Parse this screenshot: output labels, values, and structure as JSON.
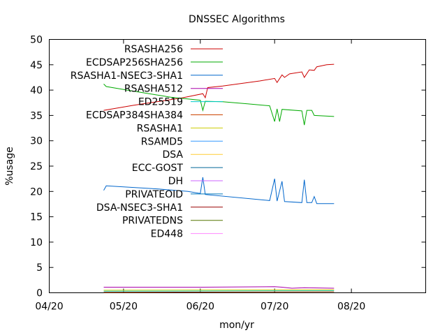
{
  "chart_data": {
    "type": "line",
    "title": "DNSSEC Algorithms",
    "xlabel": "mon/yr",
    "ylabel": "%usage",
    "ylim": [
      0,
      50
    ],
    "yticks": [
      0,
      5,
      10,
      15,
      20,
      25,
      30,
      35,
      40,
      45,
      50
    ],
    "xlim": [
      "2020-04-01",
      "2020-08-31"
    ],
    "xticks": [
      {
        "date": "2020-04-01",
        "label": "04/20"
      },
      {
        "date": "2020-05-01",
        "label": "05/20"
      },
      {
        "date": "2020-06-01",
        "label": "06/20"
      },
      {
        "date": "2020-07-01",
        "label": "07/20"
      },
      {
        "date": "2020-08-01",
        "label": "08/20"
      }
    ],
    "grid": false,
    "legend_position": "top-left inside plot",
    "series": [
      {
        "name": "RSASHA256",
        "color": "#cc0000",
        "points": [
          [
            "2020-04-23",
            36.0
          ],
          [
            "2020-05-05",
            37.0
          ],
          [
            "2020-05-25",
            38.5
          ],
          [
            "2020-06-02",
            39.3
          ],
          [
            "2020-06-03",
            38.5
          ],
          [
            "2020-06-04",
            40.5
          ],
          [
            "2020-06-10",
            40.8
          ],
          [
            "2020-06-25",
            41.8
          ],
          [
            "2020-07-01",
            42.3
          ],
          [
            "2020-07-02",
            41.5
          ],
          [
            "2020-07-04",
            43.0
          ],
          [
            "2020-07-05",
            42.5
          ],
          [
            "2020-07-07",
            43.2
          ],
          [
            "2020-07-12",
            43.6
          ],
          [
            "2020-07-13",
            42.5
          ],
          [
            "2020-07-15",
            44.0
          ],
          [
            "2020-07-17",
            43.9
          ],
          [
            "2020-07-18",
            44.6
          ],
          [
            "2020-07-22",
            45.0
          ],
          [
            "2020-07-25",
            45.1
          ]
        ]
      },
      {
        "name": "ECDSAP256SHA256",
        "color": "#00aa00",
        "points": [
          [
            "2020-04-23",
            41.2
          ],
          [
            "2020-04-24",
            40.7
          ],
          [
            "2020-05-05",
            39.8
          ],
          [
            "2020-05-20",
            38.6
          ],
          [
            "2020-06-01",
            38.0
          ],
          [
            "2020-06-02",
            36.0
          ],
          [
            "2020-06-03",
            37.8
          ],
          [
            "2020-06-10",
            37.7
          ],
          [
            "2020-06-20",
            37.3
          ],
          [
            "2020-06-29",
            36.9
          ],
          [
            "2020-07-01",
            33.8
          ],
          [
            "2020-07-02",
            36.3
          ],
          [
            "2020-07-03",
            33.8
          ],
          [
            "2020-07-04",
            36.2
          ],
          [
            "2020-07-12",
            35.9
          ],
          [
            "2020-07-13",
            33.1
          ],
          [
            "2020-07-14",
            36.0
          ],
          [
            "2020-07-16",
            36.0
          ],
          [
            "2020-07-17",
            35.0
          ],
          [
            "2020-07-25",
            34.8
          ]
        ]
      },
      {
        "name": "RSASHA1-NSEC3-SHA1",
        "color": "#0066cc",
        "points": [
          [
            "2020-04-23",
            20.2
          ],
          [
            "2020-04-24",
            21.1
          ],
          [
            "2020-05-15",
            20.5
          ],
          [
            "2020-05-27",
            20.0
          ],
          [
            "2020-06-01",
            19.6
          ],
          [
            "2020-06-02",
            22.8
          ],
          [
            "2020-06-03",
            19.4
          ],
          [
            "2020-06-29",
            18.2
          ],
          [
            "2020-07-01",
            22.5
          ],
          [
            "2020-07-02",
            18.1
          ],
          [
            "2020-07-04",
            22.0
          ],
          [
            "2020-07-05",
            18.0
          ],
          [
            "2020-07-12",
            17.8
          ],
          [
            "2020-07-13",
            22.3
          ],
          [
            "2020-07-14",
            17.8
          ],
          [
            "2020-07-16",
            17.8
          ],
          [
            "2020-07-17",
            19.0
          ],
          [
            "2020-07-18",
            17.6
          ],
          [
            "2020-07-25",
            17.6
          ]
        ]
      },
      {
        "name": "RSASHA512",
        "color": "#aa00aa",
        "points": [
          [
            "2020-04-23",
            1.1
          ],
          [
            "2020-06-02",
            1.1
          ],
          [
            "2020-07-01",
            1.2
          ],
          [
            "2020-07-04",
            1.1
          ],
          [
            "2020-07-08",
            0.9
          ],
          [
            "2020-07-13",
            1.0
          ],
          [
            "2020-07-25",
            0.9
          ]
        ]
      },
      {
        "name": "ED25519",
        "color": "#00cccc",
        "points": [
          [
            "2020-04-23",
            0.3
          ],
          [
            "2020-07-25",
            0.4
          ]
        ]
      },
      {
        "name": "ECDSAP384SHA384",
        "color": "#cc4400",
        "points": [
          [
            "2020-04-23",
            0.1
          ],
          [
            "2020-07-25",
            0.2
          ]
        ]
      },
      {
        "name": "RSASHA1",
        "color": "#cccc00",
        "points": [
          [
            "2020-04-23",
            0.5
          ],
          [
            "2020-07-25",
            0.6
          ]
        ]
      },
      {
        "name": "RSAMD5",
        "color": "#3399ff",
        "points": []
      },
      {
        "name": "DSA",
        "color": "#ffcc33",
        "points": []
      },
      {
        "name": "ECC-GOST",
        "color": "#006699",
        "points": []
      },
      {
        "name": "DH",
        "color": "#cc66ff",
        "points": []
      },
      {
        "name": "PRIVATEOID",
        "color": "#0077bb",
        "points": []
      },
      {
        "name": "DSA-NSEC3-SHA1",
        "color": "#990000",
        "points": []
      },
      {
        "name": "PRIVATEDNS",
        "color": "#557700",
        "points": []
      },
      {
        "name": "ED448",
        "color": "#ff88ff",
        "points": []
      }
    ]
  }
}
